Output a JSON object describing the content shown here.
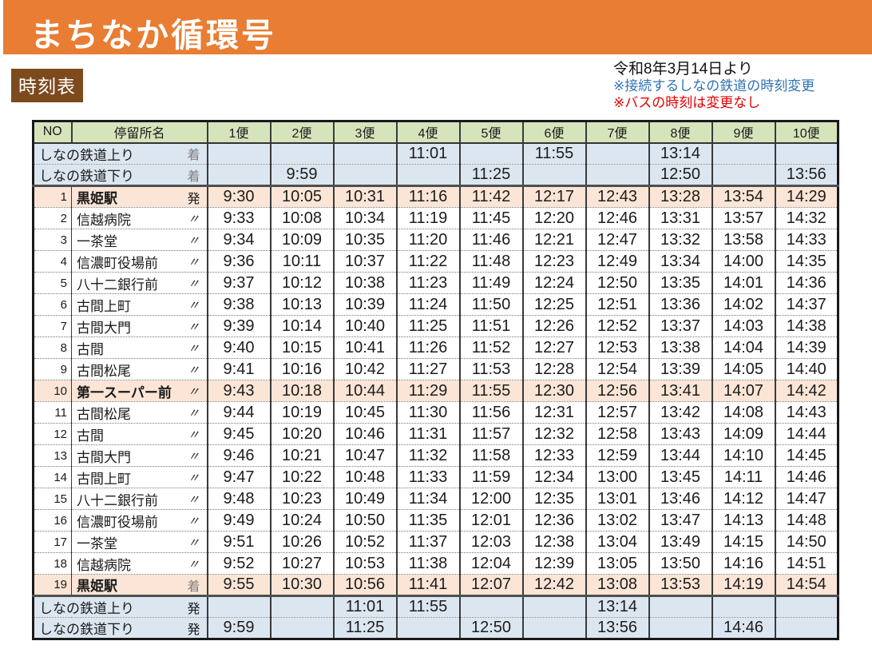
{
  "banner": {
    "title": "まちなか循環号",
    "bg_color": "#E87D33"
  },
  "badge": {
    "label": "時刻表",
    "bg_color": "#7D4A1E"
  },
  "notes": {
    "date": "令和8年3月14日より",
    "note_blue": "※接続するしなの鉄道の時刻変更",
    "note_red": "※バスの時刻は変更なし",
    "blue_color": "#2E74B5",
    "red_color": "#E60000"
  },
  "table": {
    "colors": {
      "header_bg": "#D6E4BC",
      "rail_row_bg": "#DCE6F1",
      "highlight_row_bg": "#FBE5D6"
    },
    "headers": {
      "no": "NO",
      "stop": "停留所名",
      "trips": [
        "1便",
        "2便",
        "3便",
        "4便",
        "5便",
        "6便",
        "7便",
        "8便",
        "9便",
        "10便"
      ]
    },
    "rail_top": [
      {
        "name": "しなの鉄道上り",
        "marker": "着",
        "times": [
          "",
          "",
          "",
          "11:01",
          "",
          "11:55",
          "",
          "13:14",
          "",
          ""
        ]
      },
      {
        "name": "しなの鉄道下り",
        "marker": "着",
        "times": [
          "",
          "9:59",
          "",
          "",
          "11:25",
          "",
          "",
          "12:50",
          "",
          "13:56"
        ]
      }
    ],
    "stops": [
      {
        "no": "1",
        "name": "黒姫駅",
        "marker": "発",
        "highlight": true,
        "times": [
          "9:30",
          "10:05",
          "10:31",
          "11:16",
          "11:42",
          "12:17",
          "12:43",
          "13:28",
          "13:54",
          "14:29"
        ]
      },
      {
        "no": "2",
        "name": "信越病院",
        "marker": "〃",
        "highlight": false,
        "times": [
          "9:33",
          "10:08",
          "10:34",
          "11:19",
          "11:45",
          "12:20",
          "12:46",
          "13:31",
          "13:57",
          "14:32"
        ]
      },
      {
        "no": "3",
        "name": "一茶堂",
        "marker": "〃",
        "highlight": false,
        "times": [
          "9:34",
          "10:09",
          "10:35",
          "11:20",
          "11:46",
          "12:21",
          "12:47",
          "13:32",
          "13:58",
          "14:33"
        ]
      },
      {
        "no": "4",
        "name": "信濃町役場前",
        "marker": "〃",
        "highlight": false,
        "times": [
          "9:36",
          "10:11",
          "10:37",
          "11:22",
          "11:48",
          "12:23",
          "12:49",
          "13:34",
          "14:00",
          "14:35"
        ]
      },
      {
        "no": "5",
        "name": "八十二銀行前",
        "marker": "〃",
        "highlight": false,
        "times": [
          "9:37",
          "10:12",
          "10:38",
          "11:23",
          "11:49",
          "12:24",
          "12:50",
          "13:35",
          "14:01",
          "14:36"
        ]
      },
      {
        "no": "6",
        "name": "古間上町",
        "marker": "〃",
        "highlight": false,
        "times": [
          "9:38",
          "10:13",
          "10:39",
          "11:24",
          "11:50",
          "12:25",
          "12:51",
          "13:36",
          "14:02",
          "14:37"
        ]
      },
      {
        "no": "7",
        "name": "古間大門",
        "marker": "〃",
        "highlight": false,
        "times": [
          "9:39",
          "10:14",
          "10:40",
          "11:25",
          "11:51",
          "12:26",
          "12:52",
          "13:37",
          "14:03",
          "14:38"
        ]
      },
      {
        "no": "8",
        "name": "古間",
        "marker": "〃",
        "highlight": false,
        "times": [
          "9:40",
          "10:15",
          "10:41",
          "11:26",
          "11:52",
          "12:27",
          "12:53",
          "13:38",
          "14:04",
          "14:39"
        ]
      },
      {
        "no": "9",
        "name": "古間松尾",
        "marker": "〃",
        "highlight": false,
        "times": [
          "9:41",
          "10:16",
          "10:42",
          "11:27",
          "11:53",
          "12:28",
          "12:54",
          "13:39",
          "14:05",
          "14:40"
        ]
      },
      {
        "no": "10",
        "name": "第一スーパー前",
        "marker": "〃",
        "highlight": true,
        "times": [
          "9:43",
          "10:18",
          "10:44",
          "11:29",
          "11:55",
          "12:30",
          "12:56",
          "13:41",
          "14:07",
          "14:42"
        ]
      },
      {
        "no": "11",
        "name": "古間松尾",
        "marker": "〃",
        "highlight": false,
        "times": [
          "9:44",
          "10:19",
          "10:45",
          "11:30",
          "11:56",
          "12:31",
          "12:57",
          "13:42",
          "14:08",
          "14:43"
        ]
      },
      {
        "no": "12",
        "name": "古間",
        "marker": "〃",
        "highlight": false,
        "times": [
          "9:45",
          "10:20",
          "10:46",
          "11:31",
          "11:57",
          "12:32",
          "12:58",
          "13:43",
          "14:09",
          "14:44"
        ]
      },
      {
        "no": "13",
        "name": "古間大門",
        "marker": "〃",
        "highlight": false,
        "times": [
          "9:46",
          "10:21",
          "10:47",
          "11:32",
          "11:58",
          "12:33",
          "12:59",
          "13:44",
          "14:10",
          "14:45"
        ]
      },
      {
        "no": "14",
        "name": "古間上町",
        "marker": "〃",
        "highlight": false,
        "times": [
          "9:47",
          "10:22",
          "10:48",
          "11:33",
          "11:59",
          "12:34",
          "13:00",
          "13:45",
          "14:11",
          "14:46"
        ]
      },
      {
        "no": "15",
        "name": "八十二銀行前",
        "marker": "〃",
        "highlight": false,
        "times": [
          "9:48",
          "10:23",
          "10:49",
          "11:34",
          "12:00",
          "12:35",
          "13:01",
          "13:46",
          "14:12",
          "14:47"
        ]
      },
      {
        "no": "16",
        "name": "信濃町役場前",
        "marker": "〃",
        "highlight": false,
        "times": [
          "9:49",
          "10:24",
          "10:50",
          "11:35",
          "12:01",
          "12:36",
          "13:02",
          "13:47",
          "14:13",
          "14:48"
        ]
      },
      {
        "no": "17",
        "name": "一茶堂",
        "marker": "〃",
        "highlight": false,
        "times": [
          "9:51",
          "10:26",
          "10:52",
          "11:37",
          "12:03",
          "12:38",
          "13:04",
          "13:49",
          "14:15",
          "14:50"
        ]
      },
      {
        "no": "18",
        "name": "信越病院",
        "marker": "〃",
        "highlight": false,
        "times": [
          "9:52",
          "10:27",
          "10:53",
          "11:38",
          "12:04",
          "12:39",
          "13:05",
          "13:50",
          "14:16",
          "14:51"
        ]
      },
      {
        "no": "19",
        "name": "黒姫駅",
        "marker": "着",
        "highlight": true,
        "times": [
          "9:55",
          "10:30",
          "10:56",
          "11:41",
          "12:07",
          "12:42",
          "13:08",
          "13:53",
          "14:19",
          "14:54"
        ]
      }
    ],
    "rail_bottom": [
      {
        "name": "しなの鉄道上り",
        "marker": "発",
        "times": [
          "",
          "",
          "11:01",
          "11:55",
          "",
          "",
          "13:14",
          "",
          "",
          ""
        ]
      },
      {
        "name": "しなの鉄道下り",
        "marker": "発",
        "times": [
          "9:59",
          "",
          "11:25",
          "",
          "12:50",
          "",
          "13:56",
          "",
          "14:46",
          ""
        ]
      }
    ]
  }
}
